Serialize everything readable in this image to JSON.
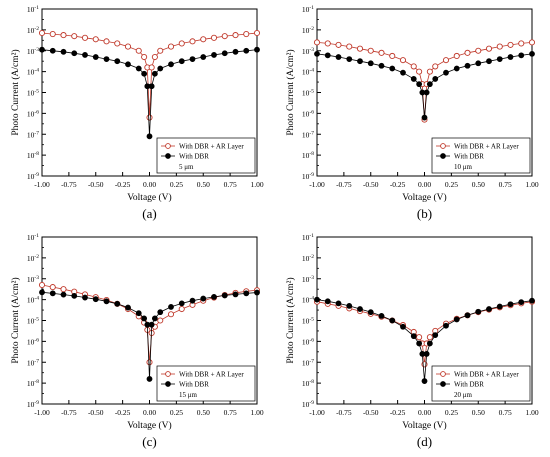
{
  "colors": {
    "ar_series": "#c0392b",
    "dbr_series": "#000000",
    "axis": "#000000"
  },
  "chart_data": [
    {
      "type": "scatter",
      "panel_label": "(a)",
      "legend_note": "5 μm",
      "xlabel": "Voltage (V)",
      "ylabel": "Photo Current (A/cm²)",
      "xlim": [
        -1.0,
        1.0
      ],
      "ylim_log10": [
        -9,
        -1
      ],
      "y_scale": "log",
      "x_ticks": [
        "-1.00",
        "-0.75",
        "-0.50",
        "-0.25",
        "0.00",
        "0.25",
        "0.50",
        "0.75",
        "1.00"
      ],
      "legend_position": "bottom-right",
      "series": [
        {
          "name": "With DBR + AR Layer",
          "marker": "open-circle",
          "x": [
            -1.0,
            -0.9,
            -0.8,
            -0.7,
            -0.6,
            -0.5,
            -0.4,
            -0.3,
            -0.2,
            -0.1,
            -0.05,
            -0.02,
            0.0,
            0.02,
            0.05,
            0.1,
            0.2,
            0.3,
            0.4,
            0.5,
            0.6,
            0.7,
            0.8,
            0.9,
            1.0
          ],
          "y_log10": [
            -2.15,
            -2.2,
            -2.25,
            -2.3,
            -2.38,
            -2.45,
            -2.55,
            -2.65,
            -2.8,
            -3.0,
            -3.3,
            -3.8,
            -6.2,
            -3.8,
            -3.3,
            -3.0,
            -2.8,
            -2.65,
            -2.55,
            -2.45,
            -2.38,
            -2.3,
            -2.25,
            -2.2,
            -2.15
          ]
        },
        {
          "name": "With DBR",
          "marker": "filled-circle",
          "x": [
            -1.0,
            -0.9,
            -0.8,
            -0.7,
            -0.6,
            -0.5,
            -0.4,
            -0.3,
            -0.2,
            -0.1,
            -0.05,
            -0.02,
            0.0,
            0.02,
            0.05,
            0.1,
            0.2,
            0.3,
            0.4,
            0.5,
            0.6,
            0.7,
            0.8,
            0.9,
            1.0
          ],
          "y_log10": [
            -2.95,
            -3.0,
            -3.05,
            -3.12,
            -3.2,
            -3.3,
            -3.4,
            -3.5,
            -3.65,
            -3.85,
            -4.1,
            -4.7,
            -7.1,
            -4.7,
            -4.1,
            -3.85,
            -3.65,
            -3.5,
            -3.4,
            -3.3,
            -3.2,
            -3.12,
            -3.05,
            -3.0,
            -2.95
          ]
        }
      ]
    },
    {
      "type": "scatter",
      "panel_label": "(b)",
      "legend_note": "10 μm",
      "xlabel": "Voltage (V)",
      "ylabel": "Photo Current (A/cm²)",
      "xlim": [
        -1.0,
        1.0
      ],
      "ylim_log10": [
        -9,
        -1
      ],
      "y_scale": "log",
      "x_ticks": [
        "-1.00",
        "-0.75",
        "-0.50",
        "-0.25",
        "0.00",
        "0.25",
        "0.50",
        "0.75",
        "1.00"
      ],
      "legend_position": "bottom-right",
      "series": [
        {
          "name": "With DBR + AR Layer",
          "marker": "open-circle",
          "x": [
            -1.0,
            -0.9,
            -0.8,
            -0.7,
            -0.6,
            -0.5,
            -0.4,
            -0.3,
            -0.2,
            -0.1,
            -0.05,
            -0.02,
            0.0,
            0.02,
            0.05,
            0.1,
            0.2,
            0.3,
            0.4,
            0.5,
            0.6,
            0.7,
            0.8,
            0.9,
            1.0
          ],
          "y_log10": [
            -2.6,
            -2.65,
            -2.72,
            -2.8,
            -2.9,
            -3.0,
            -3.1,
            -3.25,
            -3.45,
            -3.75,
            -4.0,
            -4.6,
            -6.3,
            -4.6,
            -4.0,
            -3.75,
            -3.45,
            -3.25,
            -3.1,
            -3.0,
            -2.9,
            -2.8,
            -2.72,
            -2.65,
            -2.6
          ]
        },
        {
          "name": "With DBR",
          "marker": "filled-circle",
          "x": [
            -1.0,
            -0.9,
            -0.8,
            -0.7,
            -0.6,
            -0.5,
            -0.4,
            -0.3,
            -0.2,
            -0.1,
            -0.05,
            -0.02,
            0.0,
            0.02,
            0.05,
            0.1,
            0.2,
            0.3,
            0.4,
            0.5,
            0.6,
            0.7,
            0.8,
            0.9,
            1.0
          ],
          "y_log10": [
            -3.15,
            -3.22,
            -3.3,
            -3.4,
            -3.5,
            -3.6,
            -3.72,
            -3.85,
            -4.05,
            -4.35,
            -4.6,
            -5.0,
            -6.2,
            -5.0,
            -4.6,
            -4.35,
            -4.05,
            -3.85,
            -3.72,
            -3.6,
            -3.5,
            -3.4,
            -3.3,
            -3.22,
            -3.15
          ]
        }
      ]
    },
    {
      "type": "scatter",
      "panel_label": "(c)",
      "legend_note": "15 μm",
      "xlabel": "Voltage (V)",
      "ylabel": "Photo Current (A/cm²)",
      "xlim": [
        -1.0,
        1.0
      ],
      "ylim_log10": [
        -9,
        -1
      ],
      "y_scale": "log",
      "x_ticks": [
        "-1.00",
        "-0.75",
        "-0.50",
        "-0.25",
        "0.00",
        "0.25",
        "0.50",
        "0.75",
        "1.00"
      ],
      "legend_position": "bottom-right",
      "series": [
        {
          "name": "With DBR + AR Layer",
          "marker": "open-circle",
          "x": [
            -1.0,
            -0.9,
            -0.8,
            -0.7,
            -0.6,
            -0.5,
            -0.4,
            -0.3,
            -0.2,
            -0.1,
            -0.05,
            -0.02,
            0.0,
            0.02,
            0.05,
            0.1,
            0.2,
            0.3,
            0.4,
            0.5,
            0.6,
            0.7,
            0.8,
            0.9,
            1.0
          ],
          "y_log10": [
            -3.3,
            -3.4,
            -3.5,
            -3.62,
            -3.75,
            -3.88,
            -4.02,
            -4.2,
            -4.45,
            -4.8,
            -5.1,
            -5.45,
            -7.0,
            -5.6,
            -5.3,
            -5.0,
            -4.7,
            -4.45,
            -4.25,
            -4.05,
            -3.9,
            -3.78,
            -3.68,
            -3.6,
            -3.55
          ]
        },
        {
          "name": "With DBR",
          "marker": "filled-circle",
          "x": [
            -1.0,
            -0.9,
            -0.8,
            -0.7,
            -0.6,
            -0.5,
            -0.4,
            -0.3,
            -0.2,
            -0.1,
            -0.05,
            -0.02,
            0.0,
            0.02,
            0.05,
            0.1,
            0.2,
            0.3,
            0.4,
            0.5,
            0.6,
            0.7,
            0.8,
            0.9,
            1.0
          ],
          "y_log10": [
            -3.65,
            -3.7,
            -3.76,
            -3.82,
            -3.9,
            -3.98,
            -4.08,
            -4.2,
            -4.38,
            -4.65,
            -4.9,
            -5.2,
            -7.8,
            -5.2,
            -4.9,
            -4.6,
            -4.35,
            -4.18,
            -4.05,
            -3.95,
            -3.87,
            -3.8,
            -3.75,
            -3.7,
            -3.66
          ]
        }
      ]
    },
    {
      "type": "scatter",
      "panel_label": "(d)",
      "legend_note": "20 μm",
      "xlabel": "Voltage (V)",
      "ylabel": "Photo Current (A/cm²)",
      "xlim": [
        -1.0,
        1.0
      ],
      "ylim_log10": [
        -9,
        -1
      ],
      "y_scale": "log",
      "x_ticks": [
        "-1.00",
        "-0.75",
        "-0.50",
        "-0.25",
        "0.00",
        "0.25",
        "0.50",
        "0.75",
        "1.00"
      ],
      "legend_position": "bottom-right",
      "series": [
        {
          "name": "With DBR + AR Layer",
          "marker": "open-circle",
          "x": [
            -1.0,
            -0.9,
            -0.8,
            -0.7,
            -0.6,
            -0.5,
            -0.4,
            -0.3,
            -0.2,
            -0.1,
            -0.05,
            -0.02,
            0.0,
            0.02,
            0.05,
            0.1,
            0.2,
            0.3,
            0.4,
            0.5,
            0.6,
            0.7,
            0.8,
            0.9,
            1.0
          ],
          "y_log10": [
            -4.1,
            -4.2,
            -4.3,
            -4.42,
            -4.55,
            -4.68,
            -4.82,
            -5.0,
            -5.22,
            -5.55,
            -5.8,
            -6.1,
            -7.1,
            -6.1,
            -5.8,
            -5.5,
            -5.15,
            -4.92,
            -4.75,
            -4.6,
            -4.48,
            -4.37,
            -4.27,
            -4.18,
            -4.1
          ]
        },
        {
          "name": "With DBR",
          "marker": "filled-circle",
          "x": [
            -1.0,
            -0.9,
            -0.8,
            -0.7,
            -0.6,
            -0.5,
            -0.4,
            -0.3,
            -0.2,
            -0.1,
            -0.05,
            -0.02,
            0.0,
            0.02,
            0.05,
            0.1,
            0.2,
            0.3,
            0.4,
            0.5,
            0.6,
            0.7,
            0.8,
            0.9,
            1.0
          ],
          "y_log10": [
            -4.0,
            -4.08,
            -4.18,
            -4.3,
            -4.45,
            -4.6,
            -4.78,
            -5.0,
            -5.3,
            -5.75,
            -6.1,
            -6.6,
            -7.9,
            -6.6,
            -6.1,
            -5.7,
            -5.25,
            -4.95,
            -4.75,
            -4.58,
            -4.45,
            -4.33,
            -4.22,
            -4.12,
            -4.05
          ]
        }
      ]
    }
  ]
}
